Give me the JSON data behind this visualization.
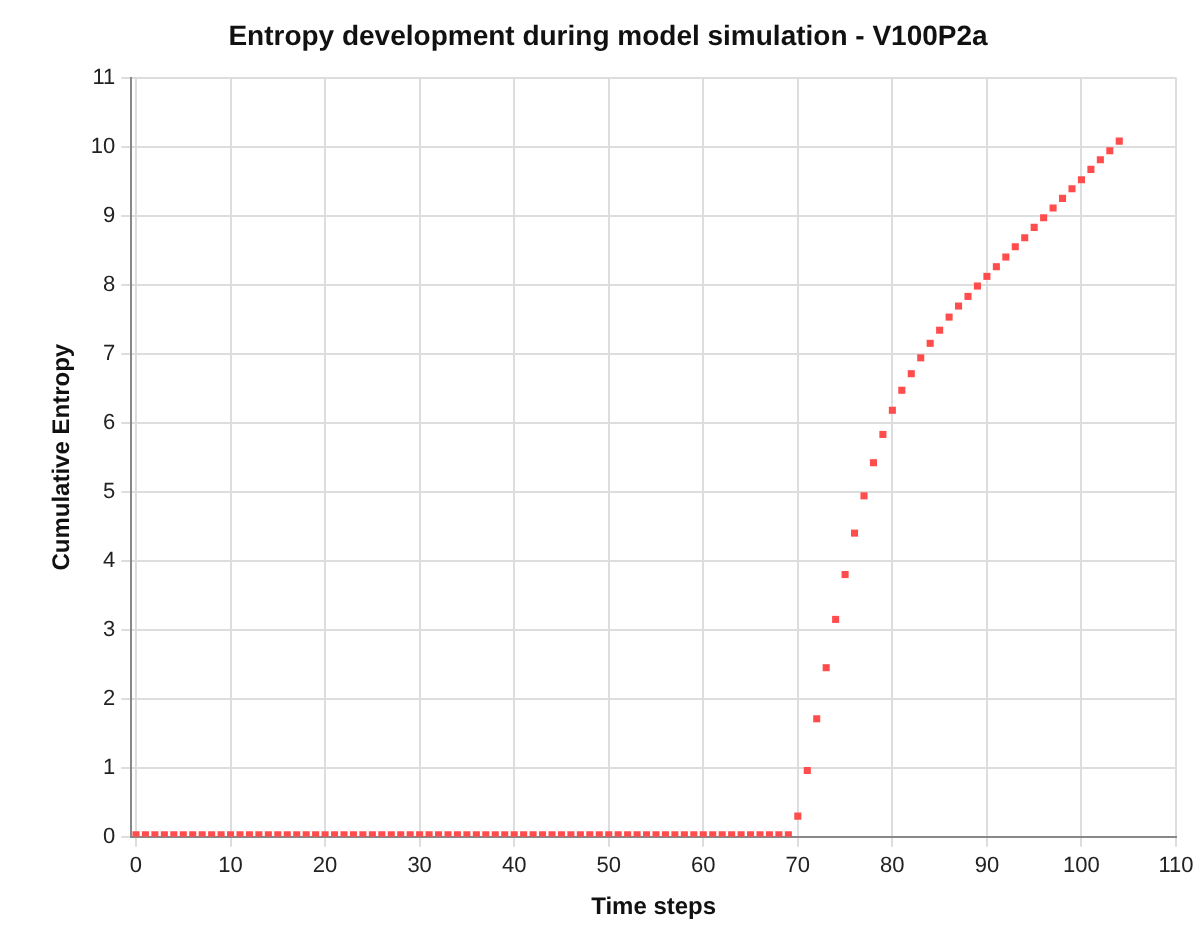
{
  "chart_data": {
    "type": "scatter",
    "title": "Entropy development during model simulation - V100P2a",
    "xlabel": "Time steps",
    "ylabel": "Cumulative Entropy",
    "x": [
      0,
      1,
      2,
      3,
      4,
      5,
      6,
      7,
      8,
      9,
      10,
      11,
      12,
      13,
      14,
      15,
      16,
      17,
      18,
      19,
      20,
      21,
      22,
      23,
      24,
      25,
      26,
      27,
      28,
      29,
      30,
      31,
      32,
      33,
      34,
      35,
      36,
      37,
      38,
      39,
      40,
      41,
      42,
      43,
      44,
      45,
      46,
      47,
      48,
      49,
      50,
      51,
      52,
      53,
      54,
      55,
      56,
      57,
      58,
      59,
      60,
      61,
      62,
      63,
      64,
      65,
      66,
      67,
      68,
      69,
      70,
      71,
      72,
      73,
      74,
      75,
      76,
      77,
      78,
      79,
      80,
      81,
      82,
      83,
      84,
      85,
      86,
      87,
      88,
      89,
      90,
      91,
      92,
      93,
      94,
      95,
      96,
      97,
      98,
      99,
      100,
      101,
      102,
      103,
      104
    ],
    "series": [
      {
        "color": "#ff4d4d",
        "values": [
          0.03,
          0.03,
          0.03,
          0.03,
          0.03,
          0.03,
          0.03,
          0.03,
          0.03,
          0.03,
          0.03,
          0.03,
          0.03,
          0.03,
          0.03,
          0.03,
          0.03,
          0.03,
          0.03,
          0.03,
          0.03,
          0.03,
          0.03,
          0.03,
          0.03,
          0.03,
          0.03,
          0.03,
          0.03,
          0.03,
          0.03,
          0.03,
          0.03,
          0.03,
          0.03,
          0.03,
          0.03,
          0.03,
          0.03,
          0.03,
          0.03,
          0.03,
          0.03,
          0.03,
          0.03,
          0.03,
          0.03,
          0.03,
          0.03,
          0.03,
          0.03,
          0.03,
          0.03,
          0.03,
          0.03,
          0.03,
          0.03,
          0.03,
          0.03,
          0.03,
          0.03,
          0.03,
          0.03,
          0.03,
          0.03,
          0.03,
          0.03,
          0.03,
          0.03,
          0.03,
          0.3,
          0.96,
          1.71,
          2.45,
          3.15,
          3.8,
          4.4,
          4.94,
          5.42,
          5.83,
          6.18,
          6.47,
          6.71,
          6.94,
          7.15,
          7.34,
          7.53,
          7.69,
          7.83,
          7.98,
          8.12,
          8.26,
          8.4,
          8.55,
          8.68,
          8.83,
          8.97,
          9.11,
          9.25,
          9.39,
          9.52,
          9.67,
          9.81,
          9.94,
          10.08
        ]
      }
    ],
    "xlim": [
      -0.5,
      110
    ],
    "xticks": [
      0,
      10,
      20,
      30,
      40,
      50,
      60,
      70,
      80,
      90,
      100,
      110
    ],
    "ylim": [
      0,
      11
    ],
    "yticks": [
      0,
      1,
      2,
      3,
      4,
      5,
      6,
      7,
      8,
      9,
      10,
      11
    ],
    "grid": true,
    "legend": false,
    "marker": "square"
  }
}
